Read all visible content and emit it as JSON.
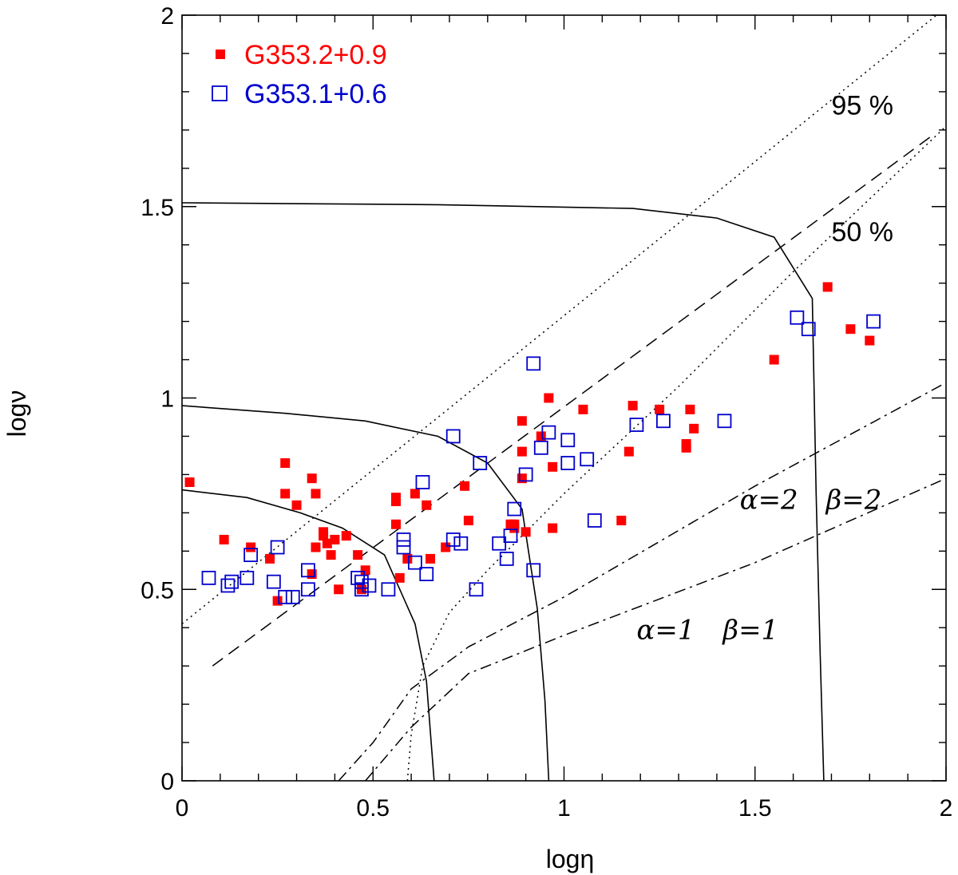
{
  "chart_data": {
    "type": "scatter",
    "xlabel": "logη",
    "ylabel": "logν",
    "xlim": [
      0,
      2
    ],
    "ylim": [
      0,
      2
    ],
    "x_ticks": [
      "0",
      "0.5",
      "1",
      "1.5",
      "2"
    ],
    "y_ticks": [
      "0",
      "0.5",
      "1",
      "1.5",
      "2"
    ],
    "legend_position": "top-left",
    "series": [
      {
        "name": "G353.2+0.9",
        "marker": "filled-square",
        "color": "#ff0000",
        "points": [
          [
            0.02,
            0.78
          ],
          [
            0.11,
            0.63
          ],
          [
            0.18,
            0.61
          ],
          [
            0.23,
            0.58
          ],
          [
            0.25,
            0.47
          ],
          [
            0.27,
            0.75
          ],
          [
            0.27,
            0.83
          ],
          [
            0.3,
            0.72
          ],
          [
            0.34,
            0.79
          ],
          [
            0.35,
            0.75
          ],
          [
            0.34,
            0.54
          ],
          [
            0.35,
            0.61
          ],
          [
            0.37,
            0.65
          ],
          [
            0.37,
            0.64
          ],
          [
            0.38,
            0.62
          ],
          [
            0.39,
            0.59
          ],
          [
            0.4,
            0.63
          ],
          [
            0.41,
            0.5
          ],
          [
            0.43,
            0.64
          ],
          [
            0.46,
            0.59
          ],
          [
            0.47,
            0.5
          ],
          [
            0.48,
            0.55
          ],
          [
            0.56,
            0.73
          ],
          [
            0.56,
            0.74
          ],
          [
            0.56,
            0.67
          ],
          [
            0.57,
            0.53
          ],
          [
            0.59,
            0.58
          ],
          [
            0.61,
            0.75
          ],
          [
            0.64,
            0.72
          ],
          [
            0.65,
            0.58
          ],
          [
            0.69,
            0.61
          ],
          [
            0.74,
            0.77
          ],
          [
            0.75,
            0.68
          ],
          [
            0.86,
            0.67
          ],
          [
            0.87,
            0.67
          ],
          [
            0.87,
            0.66
          ],
          [
            0.89,
            0.94
          ],
          [
            0.89,
            0.86
          ],
          [
            0.89,
            0.79
          ],
          [
            0.9,
            0.65
          ],
          [
            0.94,
            0.9
          ],
          [
            0.96,
            1.0
          ],
          [
            0.97,
            0.82
          ],
          [
            0.97,
            0.66
          ],
          [
            1.05,
            0.97
          ],
          [
            1.15,
            0.68
          ],
          [
            1.17,
            0.86
          ],
          [
            1.18,
            0.98
          ],
          [
            1.25,
            0.97
          ],
          [
            1.32,
            0.87
          ],
          [
            1.32,
            0.88
          ],
          [
            1.33,
            0.97
          ],
          [
            1.34,
            0.92
          ],
          [
            1.55,
            1.1
          ],
          [
            1.69,
            1.29
          ],
          [
            1.75,
            1.18
          ],
          [
            1.8,
            1.15
          ]
        ]
      },
      {
        "name": "G353.1+0.6",
        "marker": "open-square",
        "color": "#0000cc",
        "points": [
          [
            0.07,
            0.53
          ],
          [
            0.12,
            0.51
          ],
          [
            0.13,
            0.52
          ],
          [
            0.17,
            0.53
          ],
          [
            0.18,
            0.59
          ],
          [
            0.24,
            0.52
          ],
          [
            0.25,
            0.61
          ],
          [
            0.27,
            0.48
          ],
          [
            0.29,
            0.48
          ],
          [
            0.33,
            0.55
          ],
          [
            0.33,
            0.5
          ],
          [
            0.46,
            0.53
          ],
          [
            0.47,
            0.52
          ],
          [
            0.47,
            0.5
          ],
          [
            0.49,
            0.51
          ],
          [
            0.54,
            0.5
          ],
          [
            0.58,
            0.63
          ],
          [
            0.58,
            0.61
          ],
          [
            0.61,
            0.57
          ],
          [
            0.63,
            0.78
          ],
          [
            0.64,
            0.54
          ],
          [
            0.71,
            0.9
          ],
          [
            0.71,
            0.63
          ],
          [
            0.73,
            0.62
          ],
          [
            0.77,
            0.5
          ],
          [
            0.78,
            0.83
          ],
          [
            0.83,
            0.62
          ],
          [
            0.85,
            0.58
          ],
          [
            0.86,
            0.64
          ],
          [
            0.87,
            0.71
          ],
          [
            0.9,
            0.8
          ],
          [
            0.92,
            1.09
          ],
          [
            0.92,
            0.55
          ],
          [
            0.94,
            0.87
          ],
          [
            0.96,
            0.91
          ],
          [
            1.01,
            0.89
          ],
          [
            1.01,
            0.83
          ],
          [
            1.06,
            0.84
          ],
          [
            1.08,
            0.68
          ],
          [
            1.19,
            0.93
          ],
          [
            1.26,
            0.94
          ],
          [
            1.42,
            0.94
          ],
          [
            1.61,
            1.21
          ],
          [
            1.64,
            1.18
          ],
          [
            1.81,
            1.2
          ]
        ]
      }
    ],
    "curves": [
      {
        "style": "solid",
        "points": [
          [
            0,
            0.76
          ],
          [
            0.17,
            0.74
          ],
          [
            0.31,
            0.7
          ],
          [
            0.42,
            0.66
          ],
          [
            0.53,
            0.59
          ],
          [
            0.61,
            0.41
          ],
          [
            0.64,
            0.26
          ],
          [
            0.66,
            0
          ]
        ]
      },
      {
        "style": "solid",
        "points": [
          [
            0,
            0.98
          ],
          [
            0.27,
            0.96
          ],
          [
            0.48,
            0.94
          ],
          [
            0.67,
            0.9
          ],
          [
            0.8,
            0.83
          ],
          [
            0.89,
            0.71
          ],
          [
            0.93,
            0.45
          ],
          [
            0.95,
            0.21
          ],
          [
            0.96,
            0
          ]
        ]
      },
      {
        "style": "solid",
        "points": [
          [
            0,
            1.51
          ],
          [
            0.67,
            1.505
          ],
          [
            1.18,
            1.495
          ],
          [
            1.4,
            1.47
          ],
          [
            1.55,
            1.42
          ],
          [
            1.65,
            1.26
          ],
          [
            1.66,
            0.75
          ],
          [
            1.67,
            0.35
          ],
          [
            1.68,
            0
          ]
        ]
      },
      {
        "style": "dotted",
        "points": [
          [
            0,
            0.41
          ],
          [
            2,
            2.02
          ]
        ]
      },
      {
        "style": "dotted",
        "points": [
          [
            0.59,
            0
          ],
          [
            0.6,
            0.12
          ],
          [
            0.63,
            0.3
          ],
          [
            0.7,
            0.44
          ],
          [
            0.8,
            0.55
          ],
          [
            1.0,
            0.75
          ],
          [
            1.3,
            1.03
          ],
          [
            1.6,
            1.33
          ],
          [
            2,
            1.71
          ]
        ]
      },
      {
        "style": "dashed",
        "points": [
          [
            0.08,
            0.3
          ],
          [
            1.97,
            1.69
          ]
        ]
      },
      {
        "style": "dashdot",
        "points": [
          [
            0.41,
            0
          ],
          [
            0.5,
            0.1
          ],
          [
            0.6,
            0.24
          ],
          [
            0.75,
            0.35
          ],
          [
            1.0,
            0.48
          ],
          [
            1.5,
            0.77
          ],
          [
            2,
            1.04
          ]
        ]
      },
      {
        "style": "dashdot",
        "points": [
          [
            0.48,
            0
          ],
          [
            0.6,
            0.14
          ],
          [
            0.75,
            0.28
          ],
          [
            1.0,
            0.38
          ],
          [
            1.5,
            0.57
          ],
          [
            2,
            0.79
          ]
        ]
      }
    ],
    "annotations": [
      {
        "text": "95  %",
        "x": 1.7,
        "y": 1.74
      },
      {
        "text": "50  %",
        "x": 1.7,
        "y": 1.41
      },
      {
        "alpha": "α=2",
        "beta": "β=2",
        "x": 1.46,
        "y": 0.71
      },
      {
        "alpha": "α=1",
        "beta": "β=1",
        "x": 1.19,
        "y": 0.37
      }
    ]
  }
}
